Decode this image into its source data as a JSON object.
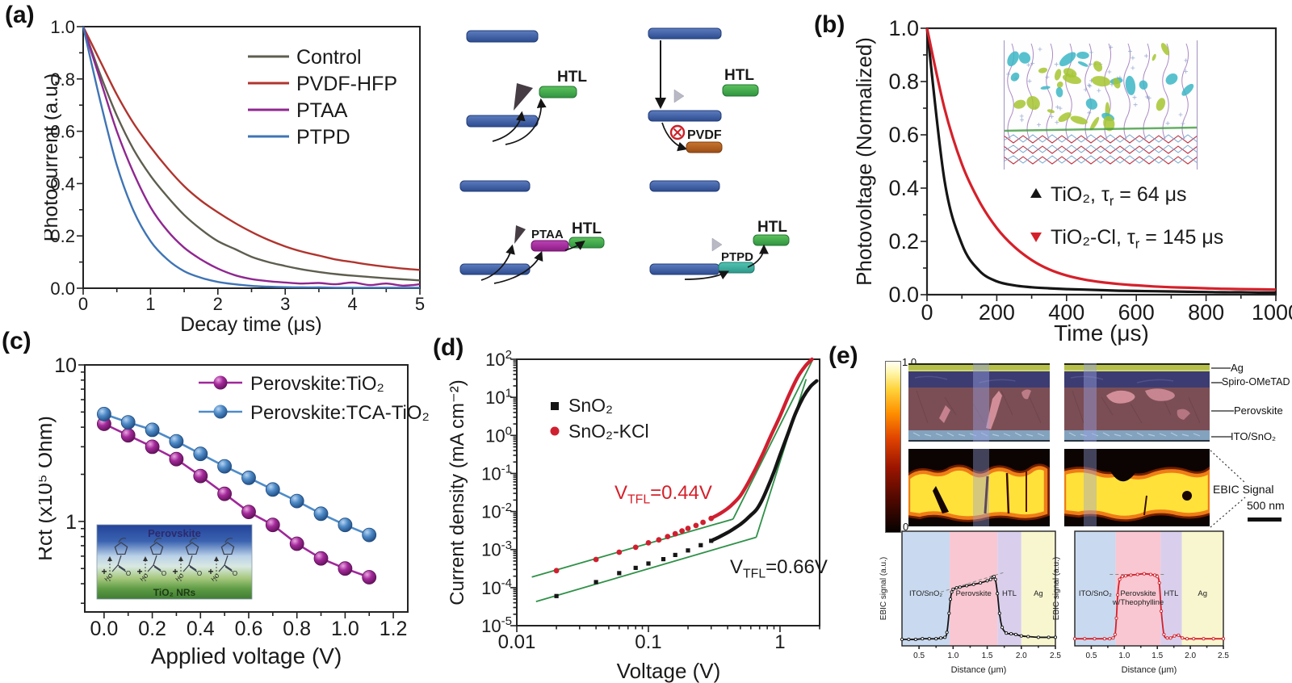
{
  "panel_labels": {
    "a": "(a)",
    "b": "(b)",
    "c": "(c)",
    "d": "(d)",
    "e": "(e)"
  },
  "chart_data": [
    {
      "panel": "a",
      "type": "line",
      "title": "",
      "xlabel": "Decay time (μs)",
      "ylabel": "Photocurrent (a.u.)",
      "xlim": [
        0,
        5
      ],
      "ylim": [
        0,
        1
      ],
      "grid": false,
      "legend_position": "upper right",
      "xticks": [
        0,
        1,
        2,
        3,
        4,
        5
      ],
      "yticks": [
        0,
        0.2,
        0.4,
        0.6,
        0.8,
        1
      ],
      "x": [
        0,
        0.25,
        0.5,
        0.75,
        1,
        1.25,
        1.5,
        1.75,
        2,
        2.25,
        2.5,
        2.75,
        3,
        3.25,
        3.5,
        3.75,
        4,
        4.25,
        4.5,
        4.75,
        5
      ],
      "series": [
        {
          "name": "Control",
          "color": "#5e5d4f",
          "values": [
            1,
            0.82,
            0.66,
            0.53,
            0.43,
            0.35,
            0.28,
            0.225,
            0.18,
            0.15,
            0.12,
            0.1,
            0.085,
            0.072,
            0.062,
            0.054,
            0.048,
            0.043,
            0.038,
            0.034,
            0.03
          ]
        },
        {
          "name": "PVDF-HFP",
          "color": "#b0342e",
          "values": [
            1,
            0.87,
            0.74,
            0.63,
            0.54,
            0.46,
            0.39,
            0.335,
            0.29,
            0.25,
            0.215,
            0.185,
            0.16,
            0.14,
            0.125,
            0.11,
            0.1,
            0.09,
            0.082,
            0.075,
            0.07
          ]
        },
        {
          "name": "PTAA",
          "color": "#8f2790",
          "values": [
            1,
            0.8,
            0.6,
            0.44,
            0.31,
            0.22,
            0.155,
            0.11,
            0.075,
            0.05,
            0.035,
            0.027,
            0.022,
            0.018,
            0.02,
            0.015,
            0.022,
            0.012,
            0.018,
            0.01,
            0.015
          ]
        },
        {
          "name": "PTPD",
          "color": "#3f74b5",
          "values": [
            1,
            0.72,
            0.47,
            0.295,
            0.18,
            0.11,
            0.065,
            0.04,
            0.024,
            0.015,
            0.009,
            0.006,
            0.004,
            0.003,
            0.003,
            0.002,
            0.002,
            0.002,
            0.002,
            0.002,
            0.002
          ]
        }
      ]
    },
    {
      "panel": "b",
      "type": "line",
      "title": "",
      "xlabel": "Time (μs)",
      "ylabel": "Photovoltage (Normalized)",
      "xlim": [
        0,
        1000
      ],
      "ylim": [
        0,
        1
      ],
      "grid": false,
      "legend_position": "center right",
      "xticks": [
        0,
        200,
        400,
        600,
        800,
        1000
      ],
      "yticks": [
        0,
        0.2,
        0.4,
        0.6,
        0.8,
        1
      ],
      "x": [
        0,
        50,
        100,
        150,
        200,
        250,
        300,
        350,
        400,
        450,
        500,
        550,
        600,
        650,
        700,
        750,
        800,
        850,
        900,
        950,
        1000
      ],
      "series": [
        {
          "name_pre": "TiO₂, τ",
          "name_sub": "r",
          "name_post": " = 64 μs",
          "marker": "triangle-up",
          "color": "#151515",
          "values": [
            1,
            0.43,
            0.19,
            0.09,
            0.05,
            0.035,
            0.028,
            0.024,
            0.021,
            0.019,
            0.017,
            0.015,
            0.014,
            0.013,
            0.012,
            0.011,
            0.01,
            0.009,
            0.009,
            0.008,
            0.008
          ]
        },
        {
          "name_pre": "TiO₂-Cl, τ",
          "name_sub": "r",
          "name_post": " = 145 μs",
          "marker": "triangle-down",
          "color": "#d5202a",
          "values": [
            1,
            0.7,
            0.49,
            0.35,
            0.25,
            0.18,
            0.13,
            0.095,
            0.072,
            0.057,
            0.047,
            0.04,
            0.035,
            0.031,
            0.028,
            0.026,
            0.024,
            0.022,
            0.021,
            0.02,
            0.019
          ]
        }
      ]
    },
    {
      "panel": "c",
      "type": "line-scatter",
      "title": "",
      "xlabel": "Applied voltage (V)",
      "ylabel": "Rct (x10⁵ Ohm)",
      "xlim": [
        -0.08,
        1.26
      ],
      "ylim": [
        0.264,
        10
      ],
      "yscale": "log",
      "xticks": [
        0,
        0.2,
        0.4,
        0.6,
        0.8,
        1,
        1.2
      ],
      "yticks": [
        1,
        10
      ],
      "x": [
        0,
        0.1,
        0.2,
        0.3,
        0.4,
        0.5,
        0.6,
        0.7,
        0.8,
        0.9,
        1,
        1.1
      ],
      "series": [
        {
          "name": "Perovskite:TiO₂",
          "color": "#a0279a",
          "values": [
            4.2,
            3.55,
            3.0,
            2.5,
            1.95,
            1.5,
            1.15,
            0.95,
            0.72,
            0.58,
            0.5,
            0.44
          ]
        },
        {
          "name": "Perovskite:TCA-TiO₂",
          "color": "#4e8bc8",
          "values": [
            4.85,
            4.3,
            3.85,
            3.25,
            2.7,
            2.25,
            1.9,
            1.6,
            1.35,
            1.12,
            0.95,
            0.82
          ]
        }
      ],
      "inset": {
        "top": "Perovskite",
        "bottom": "TiO₂ NRs"
      }
    },
    {
      "panel": "d",
      "type": "scatter",
      "title": "",
      "xlabel": "Voltage (V)",
      "ylabel": "Current density (mA cm⁻²)",
      "xlim": [
        0.01,
        2
      ],
      "ylim": [
        1e-05,
        100
      ],
      "xscale": "log",
      "yscale": "log",
      "xticks": [
        0.01,
        0.1,
        1
      ],
      "ytick_exponents": [
        2,
        1,
        0,
        -1,
        -2,
        -3,
        -4,
        -5
      ],
      "series": [
        {
          "name": "SnO₂",
          "marker": "square",
          "color": "#151515",
          "x": [
            0.02,
            0.04,
            0.06,
            0.08,
            0.1,
            0.13,
            0.16,
            0.2,
            0.25,
            0.3,
            0.35,
            0.4,
            0.45,
            0.5,
            0.55,
            0.6,
            0.66,
            0.72,
            0.8,
            0.9,
            1,
            1.15,
            1.3,
            1.5,
            1.7,
            1.9
          ],
          "y": [
            6e-05,
            0.00014,
            0.00024,
            0.00033,
            0.00043,
            0.00056,
            0.00072,
            0.00095,
            0.0013,
            0.0017,
            0.0022,
            0.0028,
            0.0036,
            0.0046,
            0.006,
            0.008,
            0.011,
            0.018,
            0.04,
            0.11,
            0.3,
            1.1,
            3.5,
            10,
            19,
            27
          ]
        },
        {
          "name": "SnO₂-KCl",
          "marker": "circle",
          "color": "#cf2030",
          "x": [
            0.02,
            0.04,
            0.06,
            0.08,
            0.1,
            0.12,
            0.14,
            0.16,
            0.18,
            0.2,
            0.23,
            0.26,
            0.3,
            0.35,
            0.4,
            0.44,
            0.5,
            0.57,
            0.65,
            0.75,
            0.85,
            1,
            1.15,
            1.35,
            1.55,
            1.75
          ],
          "y": [
            0.00028,
            0.00055,
            0.00085,
            0.00115,
            0.0015,
            0.0018,
            0.0022,
            0.0026,
            0.0031,
            0.0036,
            0.0043,
            0.0052,
            0.0066,
            0.0088,
            0.012,
            0.016,
            0.026,
            0.055,
            0.13,
            0.36,
            0.95,
            3.2,
            10,
            32,
            65,
            100
          ]
        }
      ],
      "fit_lines": [
        {
          "color": "#2f9148",
          "x1": 0.013,
          "y1": 0.00019,
          "x2": 0.44,
          "y2": 0.0063
        },
        {
          "color": "#2f9148",
          "x1": 0.44,
          "y1": 0.0063,
          "x2": 1.78,
          "y2": 100
        },
        {
          "color": "#2f9148",
          "x1": 0.014,
          "y1": 4.3e-05,
          "x2": 0.66,
          "y2": 0.0021
        },
        {
          "color": "#2f9148",
          "x1": 0.66,
          "y1": 0.0021,
          "x2": 1.58,
          "y2": 30
        }
      ],
      "annotations": [
        {
          "pre": "V",
          "sub": "TFL",
          "post": "=0.44V",
          "color": "#d5202a"
        },
        {
          "pre": "V",
          "sub": "TFL",
          "post": "=0.66V",
          "color": "#1a1a1a"
        }
      ]
    },
    {
      "panel": "e-left",
      "type": "line",
      "title": "",
      "xlabel": "Distance (μm)",
      "ylabel": "EBIC signal (a.u.)",
      "xlim": [
        0.25,
        2.5
      ],
      "xticks": [
        0.5,
        1,
        1.5,
        2,
        2.5
      ],
      "color": "#151515",
      "regions": [
        {
          "label": "ITO/SnO₂",
          "x0": 0.25,
          "x1": 0.95,
          "color": "#c9d9ef"
        },
        {
          "label": "Perovskite",
          "x0": 0.95,
          "x1": 1.65,
          "color": "#f8c7d2"
        },
        {
          "label": "HTL",
          "x0": 1.65,
          "x1": 2.0,
          "color": "#d9cfec"
        },
        {
          "label": "Ag",
          "x0": 2.0,
          "x1": 2.5,
          "color": "#f8f6cf"
        }
      ],
      "dash": [
        [
          0.82,
          0.72
        ],
        [
          1.75,
          1.0
        ]
      ],
      "x": [
        0.25,
        0.35,
        0.45,
        0.55,
        0.65,
        0.75,
        0.82,
        0.88,
        0.91,
        0.94,
        0.96,
        0.98,
        1.0,
        1.05,
        1.1,
        1.2,
        1.3,
        1.4,
        1.5,
        1.55,
        1.58,
        1.6,
        1.62,
        1.65,
        1.68,
        1.72,
        1.78,
        1.85,
        1.92,
        2.0,
        2.1,
        2.25,
        2.4,
        2.5
      ],
      "y": [
        0.05,
        0.05,
        0.05,
        0.06,
        0.06,
        0.06,
        0.07,
        0.08,
        0.15,
        0.42,
        0.62,
        0.72,
        0.76,
        0.78,
        0.79,
        0.81,
        0.83,
        0.85,
        0.88,
        0.9,
        0.93,
        0.94,
        0.9,
        0.7,
        0.42,
        0.22,
        0.14,
        0.13,
        0.12,
        0.1,
        0.09,
        0.08,
        0.08,
        0.08
      ]
    },
    {
      "panel": "e-right",
      "type": "line",
      "title": "",
      "xlabel": "Distance (μm)",
      "ylabel": "EBIC signal (a.u.)",
      "xlim": [
        0.25,
        2.5
      ],
      "xticks": [
        0.5,
        1,
        1.5,
        2,
        2.5
      ],
      "color": "#d5202a",
      "regions": [
        {
          "label": "ITO/SnO₂",
          "x0": 0.25,
          "x1": 0.87,
          "color": "#c9d9ef"
        },
        {
          "label": "Perovskite",
          "label2": "w/Theophylline",
          "x0": 0.87,
          "x1": 1.55,
          "color": "#f8c7d2"
        },
        {
          "label": "HTL",
          "x0": 1.55,
          "x1": 1.87,
          "color": "#d9cfec"
        },
        {
          "label": "Ag",
          "x0": 1.87,
          "x1": 2.5,
          "color": "#f8f6cf"
        }
      ],
      "dash": [
        [
          0.78,
          0.97
        ],
        [
          1.6,
          0.97
        ]
      ],
      "x": [
        0.25,
        0.4,
        0.55,
        0.7,
        0.78,
        0.83,
        0.86,
        0.88,
        0.9,
        0.93,
        0.97,
        1.02,
        1.1,
        1.2,
        1.3,
        1.4,
        1.46,
        1.5,
        1.53,
        1.56,
        1.6,
        1.65,
        1.7,
        1.76,
        1.82,
        1.88,
        1.95,
        2.05,
        2.2,
        2.35,
        2.5
      ],
      "y": [
        0.06,
        0.06,
        0.06,
        0.06,
        0.06,
        0.07,
        0.12,
        0.35,
        0.68,
        0.9,
        0.94,
        0.95,
        0.96,
        0.97,
        0.98,
        0.97,
        0.96,
        0.94,
        0.85,
        0.45,
        0.12,
        0.07,
        0.07,
        0.1,
        0.11,
        0.07,
        0.06,
        0.06,
        0.06,
        0.06,
        0.06
      ]
    }
  ],
  "diagram": {
    "htl": "HTL",
    "pvdf": "PVDF",
    "ptaa": "PTAA",
    "ptpd": "PTPD",
    "colors": {
      "level": "#3a5aa8",
      "htl": "#43ad4b",
      "pvdf": "#b2642a",
      "ptaa": "#a224a0",
      "ptpd": "#3db3a2"
    }
  },
  "panel_e": {
    "colorbar_max": "1.0",
    "colorbar_min": "0",
    "layer_labels": [
      "Ag",
      "Spiro-OMeTAD",
      "Perovskite",
      "ITO/SnO₂"
    ],
    "ebic_signal_label": "EBIC Signal",
    "scale_bar_label": "500 nm"
  }
}
